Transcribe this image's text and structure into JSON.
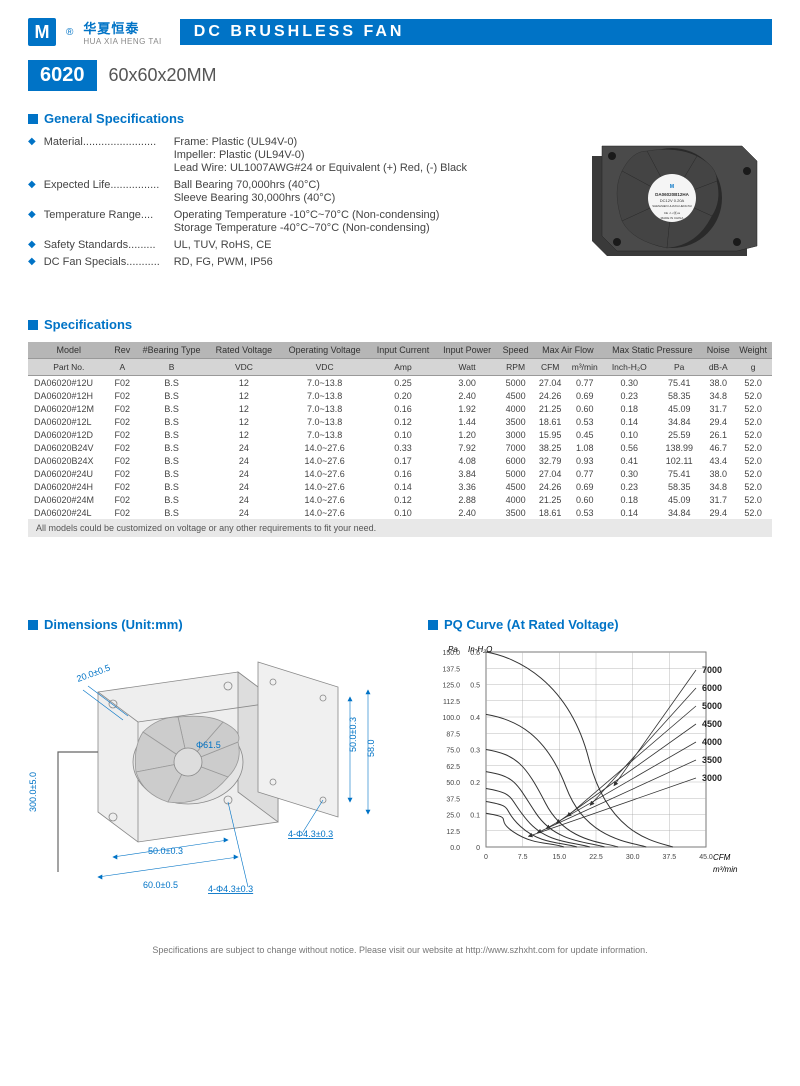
{
  "brand": {
    "cn": "华夏恒泰",
    "en": "HUA XIA HENG TAI",
    "logo": "M"
  },
  "title": "DC BRUSHLESS FAN",
  "model": "6020",
  "dimensions": "60x60x20MM",
  "fan_label": {
    "model": "DA06020B12HA",
    "voltage": "DC12V  0.20A",
    "mfr": "SHENZHEN HUAXIA HENGTAI",
    "origin": "MADE IN CHINA"
  },
  "general": {
    "heading": "General Specifications",
    "items": [
      {
        "label": "Material........................",
        "values": [
          "Frame: Plastic (UL94V-0)",
          "Impeller: Plastic (UL94V-0)",
          "Lead Wire: UL1007AWG#24 or Equivalent (+) Red, (-) Black"
        ]
      },
      {
        "label": "Expected Life................",
        "values": [
          "Ball Bearing 70,000hrs (40°C)",
          "Sleeve Bearing 30,000hrs (40°C)"
        ]
      },
      {
        "label": "Temperature Range....",
        "values": [
          "Operating Temperature -10°C~70°C (Non-condensing)",
          "Storage Temperature -40°C~70°C (Non-condensing)"
        ]
      },
      {
        "label": "Safety Standards.........",
        "values": [
          "UL, TUV, RoHS, CE"
        ]
      },
      {
        "label": "DC Fan Specials...........",
        "values": [
          "RD, FG, PWM, IP56"
        ]
      }
    ]
  },
  "specs": {
    "heading": "Specifications",
    "header1": [
      "Model",
      "Rev",
      "#Bearing Type",
      "Rated Voltage",
      "Operating Voltage",
      "Input Current",
      "Input Power",
      "Speed",
      "Max Air Flow",
      "",
      "Max Static Pressure",
      "",
      "Noise",
      "Weight"
    ],
    "header2": [
      "Part No.",
      "A",
      "B",
      "VDC",
      "VDC",
      "Amp",
      "Watt",
      "RPM",
      "CFM",
      "m³/min",
      "Inch-H₂O",
      "Pa",
      "dB-A",
      "g"
    ],
    "rows": [
      [
        "DA06020#12U",
        "F02",
        "B.S",
        "12",
        "7.0~13.8",
        "0.25",
        "3.00",
        "5000",
        "27.04",
        "0.77",
        "0.30",
        "75.41",
        "38.0",
        "52.0"
      ],
      [
        "DA06020#12H",
        "F02",
        "B.S",
        "12",
        "7.0~13.8",
        "0.20",
        "2.40",
        "4500",
        "24.26",
        "0.69",
        "0.23",
        "58.35",
        "34.8",
        "52.0"
      ],
      [
        "DA06020#12M",
        "F02",
        "B.S",
        "12",
        "7.0~13.8",
        "0.16",
        "1.92",
        "4000",
        "21.25",
        "0.60",
        "0.18",
        "45.09",
        "31.7",
        "52.0"
      ],
      [
        "DA06020#12L",
        "F02",
        "B.S",
        "12",
        "7.0~13.8",
        "0.12",
        "1.44",
        "3500",
        "18.61",
        "0.53",
        "0.14",
        "34.84",
        "29.4",
        "52.0"
      ],
      [
        "DA06020#12D",
        "F02",
        "B.S",
        "12",
        "7.0~13.8",
        "0.10",
        "1.20",
        "3000",
        "15.95",
        "0.45",
        "0.10",
        "25.59",
        "26.1",
        "52.0"
      ],
      [
        "DA06020B24V",
        "F02",
        "B.S",
        "24",
        "14.0~27.6",
        "0.33",
        "7.92",
        "7000",
        "38.25",
        "1.08",
        "0.56",
        "138.99",
        "46.7",
        "52.0"
      ],
      [
        "DA06020B24X",
        "F02",
        "B.S",
        "24",
        "14.0~27.6",
        "0.17",
        "4.08",
        "6000",
        "32.79",
        "0.93",
        "0.41",
        "102.11",
        "43.4",
        "52.0"
      ],
      [
        "DA06020#24U",
        "F02",
        "B.S",
        "24",
        "14.0~27.6",
        "0.16",
        "3.84",
        "5000",
        "27.04",
        "0.77",
        "0.30",
        "75.41",
        "38.0",
        "52.0"
      ],
      [
        "DA06020#24H",
        "F02",
        "B.S",
        "24",
        "14.0~27.6",
        "0.14",
        "3.36",
        "4500",
        "24.26",
        "0.69",
        "0.23",
        "58.35",
        "34.8",
        "52.0"
      ],
      [
        "DA06020#24M",
        "F02",
        "B.S",
        "24",
        "14.0~27.6",
        "0.12",
        "2.88",
        "4000",
        "21.25",
        "0.60",
        "0.18",
        "45.09",
        "31.7",
        "52.0"
      ],
      [
        "DA06020#24L",
        "F02",
        "B.S",
        "24",
        "14.0~27.6",
        "0.10",
        "2.40",
        "3500",
        "18.61",
        "0.53",
        "0.14",
        "34.84",
        "29.4",
        "52.0"
      ]
    ],
    "note": "All models could be customized on voltage or any other requirements to fit your need."
  },
  "dim": {
    "heading": "Dimensions (Unit:mm)",
    "labels": {
      "depth": "20.0±0.5",
      "wire": "300.0±5.0",
      "w50": "50.0±0.3",
      "w60": "60.0±0.5",
      "w58": "58.0",
      "circle": "Φ61.5",
      "hole": "4-Φ4.3±0.3"
    }
  },
  "pq": {
    "heading": "PQ Curve (At Rated Voltage)",
    "y_label_pa": "Pa",
    "y_label_in": "In-H₂O",
    "y_ticks_pa": [
      "150.0",
      "137.5",
      "125.0",
      "112.5",
      "100.0",
      "87.5",
      "75.0",
      "62.5",
      "50.0",
      "37.5",
      "25.0",
      "12.5",
      "0.0"
    ],
    "y_ticks_in": [
      "0.6",
      "0.5",
      "0.4",
      "0.3",
      "0.2",
      "0.1",
      "0"
    ],
    "x_ticks_cfm": [
      "0",
      "7.5",
      "15.0",
      "22.5",
      "30.0",
      "37.5",
      "45.0"
    ],
    "x_label_cfm": "CFM",
    "x_label_m3": "m³/min",
    "curves": [
      "7000",
      "6000",
      "5000",
      "4500",
      "4000",
      "3500",
      "3000"
    ]
  },
  "footer": "Specifications are subject to change without notice. Please visit our website at http://www.szhxht.com for update information."
}
